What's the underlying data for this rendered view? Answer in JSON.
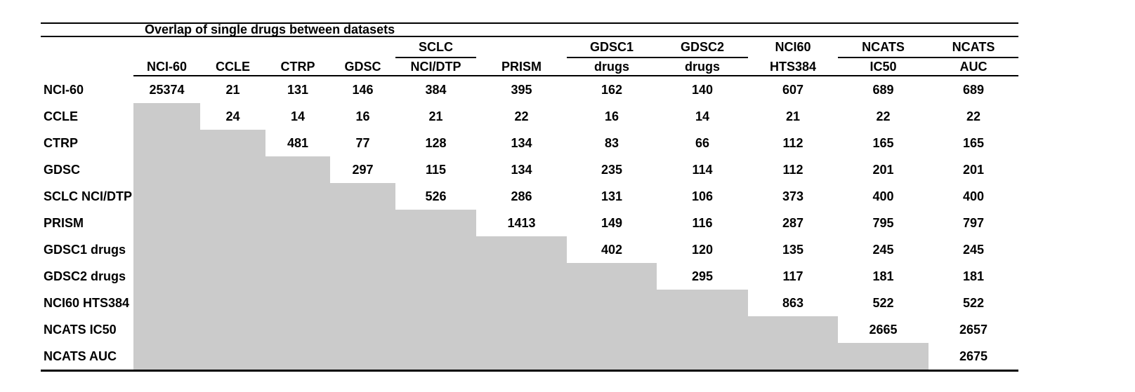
{
  "title": "Overlap of single drugs between datasets",
  "colors": {
    "background": "#ffffff",
    "gray_cell": "#cbcbcb",
    "rule": "#000000",
    "text": "#000000"
  },
  "header": {
    "spanners": [
      {
        "label": "SCLC",
        "col": 4
      },
      {
        "label": "GDSC1",
        "col": 6
      },
      {
        "label": "GDSC2",
        "col": 7
      },
      {
        "label": "NCI60",
        "col": 8
      },
      {
        "label": "NCATS",
        "col": 9
      },
      {
        "label": "NCATS",
        "col": 10
      }
    ],
    "underline_groups": [
      {
        "col": 4,
        "span": 1
      },
      {
        "col": 6,
        "span": 2
      },
      {
        "col": 9,
        "span": 2
      }
    ],
    "columns": [
      "NCI-60",
      "CCLE",
      "CTRP",
      "GDSC",
      "NCI/DTP",
      "PRISM",
      "drugs",
      "drugs",
      "HTS384",
      "IC50",
      "AUC"
    ]
  },
  "matrix": {
    "rows": [
      {
        "label": "NCI-60",
        "cells": [
          25374,
          21,
          131,
          146,
          384,
          395,
          162,
          140,
          607,
          689,
          689
        ]
      },
      {
        "label": "CCLE",
        "cells": [
          null,
          24,
          14,
          16,
          21,
          22,
          16,
          14,
          21,
          22,
          22
        ]
      },
      {
        "label": "CTRP",
        "cells": [
          null,
          null,
          481,
          77,
          128,
          134,
          83,
          66,
          112,
          165,
          165
        ]
      },
      {
        "label": "GDSC",
        "cells": [
          null,
          null,
          null,
          297,
          115,
          134,
          235,
          114,
          112,
          201,
          201
        ]
      },
      {
        "label": "SCLC NCI/DTP",
        "cells": [
          null,
          null,
          null,
          null,
          526,
          286,
          131,
          106,
          373,
          400,
          400
        ]
      },
      {
        "label": "PRISM",
        "cells": [
          null,
          null,
          null,
          null,
          null,
          1413,
          149,
          116,
          287,
          795,
          797
        ]
      },
      {
        "label": "GDSC1 drugs",
        "cells": [
          null,
          null,
          null,
          null,
          null,
          null,
          402,
          120,
          135,
          245,
          245
        ]
      },
      {
        "label": "GDSC2 drugs",
        "cells": [
          null,
          null,
          null,
          null,
          null,
          null,
          null,
          295,
          117,
          181,
          181
        ]
      },
      {
        "label": "NCI60 HTS384",
        "cells": [
          null,
          null,
          null,
          null,
          null,
          null,
          null,
          null,
          863,
          522,
          522
        ]
      },
      {
        "label": "NCATS IC50",
        "cells": [
          null,
          null,
          null,
          null,
          null,
          null,
          null,
          null,
          null,
          2665,
          2657
        ]
      },
      {
        "label": "NCATS AUC",
        "cells": [
          null,
          null,
          null,
          null,
          null,
          null,
          null,
          null,
          null,
          null,
          2675
        ]
      }
    ]
  },
  "chart_data": {
    "type": "table",
    "title": "Overlap of single drugs between datasets",
    "column_spanners": [
      "SCLC over col 5",
      "GDSC1 over col 7",
      "GDSC2 over col 8",
      "NCI60 over col 9",
      "NCATS over col 10",
      "NCATS over col 11"
    ],
    "columns": [
      "NCI-60",
      "CCLE",
      "CTRP",
      "GDSC",
      "SCLC NCI/DTP",
      "PRISM",
      "GDSC1 drugs",
      "GDSC2 drugs",
      "NCI60 HTS384",
      "NCATS IC50",
      "NCATS AUC"
    ],
    "row_labels": [
      "NCI-60",
      "CCLE",
      "CTRP",
      "GDSC",
      "SCLC NCI/DTP",
      "PRISM",
      "GDSC1 drugs",
      "GDSC2 drugs",
      "NCI60 HTS384",
      "NCATS IC50",
      "NCATS AUC"
    ],
    "matrix_upper_triangle": [
      [
        25374,
        21,
        131,
        146,
        384,
        395,
        162,
        140,
        607,
        689,
        689
      ],
      [
        24,
        14,
        16,
        21,
        22,
        16,
        14,
        21,
        22,
        22
      ],
      [
        481,
        77,
        128,
        134,
        83,
        66,
        112,
        165,
        165
      ],
      [
        297,
        115,
        134,
        235,
        114,
        112,
        201,
        201
      ],
      [
        526,
        286,
        131,
        106,
        373,
        400,
        400
      ],
      [
        1413,
        149,
        116,
        287,
        795,
        797
      ],
      [
        402,
        120,
        135,
        245,
        245
      ],
      [
        295,
        117,
        181,
        181
      ],
      [
        863,
        522,
        522
      ],
      [
        2665,
        2657
      ],
      [
        2675
      ]
    ],
    "layout_hints": {
      "lower_triangle": "solid gray blocks (no values)",
      "diagonal": "dataset self-counts",
      "grid": "off",
      "rules": [
        "above title",
        "below title",
        "below column headers",
        "thick bottom rule"
      ]
    }
  }
}
